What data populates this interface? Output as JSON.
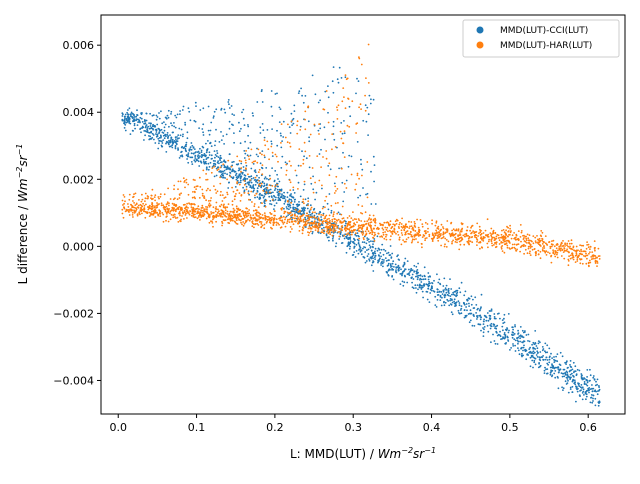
{
  "chart_data": {
    "type": "scatter",
    "title": "",
    "xlabel": {
      "main": "L: MMD(LUT) / ",
      "unit_base": "Wm",
      "unit_exp1": "−2",
      "unit_mid": "sr",
      "unit_exp2": "−1"
    },
    "ylabel": {
      "main": "L difference / ",
      "unit_base": "Wm",
      "unit_exp1": "−2",
      "unit_mid": "sr",
      "unit_exp2": "−1"
    },
    "xlim": [
      -0.022,
      0.647
    ],
    "ylim": [
      -0.005,
      0.0069
    ],
    "xticks": [
      0.0,
      0.1,
      0.2,
      0.3,
      0.4,
      0.5,
      0.6
    ],
    "xtick_labels": [
      "0.0",
      "0.1",
      "0.2",
      "0.3",
      "0.4",
      "0.5",
      "0.6"
    ],
    "yticks": [
      -0.004,
      -0.002,
      0.0,
      0.002,
      0.004,
      0.006
    ],
    "ytick_labels": [
      "−0.004",
      "−0.002",
      "0.000",
      "0.002",
      "0.004",
      "0.006"
    ],
    "grid": false,
    "legend_position": "top-right",
    "series": [
      {
        "name": "MMD(LUT)-CCI(LUT)",
        "color": "#1f77b4",
        "trend_points": [
          [
            0.01,
            0.0038
          ],
          [
            0.1,
            0.0027
          ],
          [
            0.2,
            0.0015
          ],
          [
            0.3,
            0.0001
          ],
          [
            0.4,
            -0.0012
          ],
          [
            0.5,
            -0.0026
          ],
          [
            0.61,
            -0.0044
          ]
        ],
        "upper_fan_points": [
          [
            0.05,
            0.004
          ],
          [
            0.15,
            0.0045
          ],
          [
            0.25,
            0.0052
          ],
          [
            0.33,
            0.0057
          ]
        ],
        "x_range": [
          0.005,
          0.615
        ]
      },
      {
        "name": "MMD(LUT)-HAR(LUT)",
        "color": "#ff7f0e",
        "trend_points": [
          [
            0.01,
            0.0011
          ],
          [
            0.1,
            0.001
          ],
          [
            0.2,
            0.0008
          ],
          [
            0.3,
            0.0006
          ],
          [
            0.4,
            0.0004
          ],
          [
            0.5,
            0.0002
          ],
          [
            0.61,
            -0.0003
          ]
        ],
        "upper_fan_points": [
          [
            0.05,
            0.0016
          ],
          [
            0.15,
            0.0028
          ],
          [
            0.25,
            0.0045
          ],
          [
            0.32,
            0.0062
          ]
        ],
        "x_range": [
          0.005,
          0.615
        ]
      }
    ]
  }
}
